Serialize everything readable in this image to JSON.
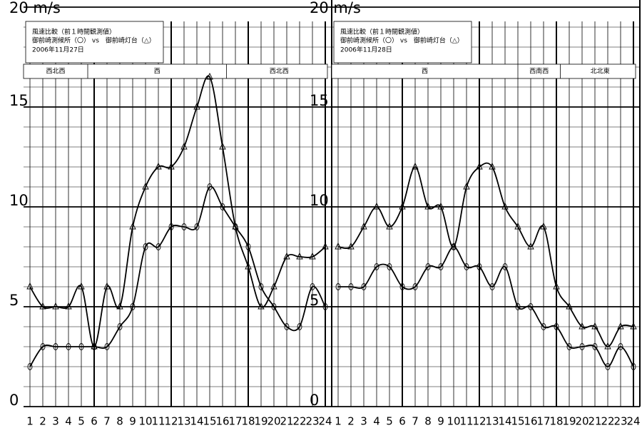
{
  "chart_data": [
    {
      "type": "line",
      "title": "風速比較（前１時間観測値）",
      "subtitle": "御前崎測候所（〇） vs　御前崎灯台（△）",
      "date": "2006年11月27日",
      "directions": [
        {
          "label": "西北西",
          "from": 0.5,
          "to": 5.5
        },
        {
          "label": "西",
          "from": 5.5,
          "to": 16.3
        },
        {
          "label": "西北西",
          "from": 16.3,
          "to": 24.5
        }
      ],
      "x": [
        1,
        2,
        3,
        4,
        5,
        6,
        7,
        8,
        9,
        10,
        11,
        12,
        13,
        14,
        15,
        16,
        17,
        18,
        19,
        20,
        21,
        22,
        23,
        24
      ],
      "xlim": [
        0.5,
        24.5
      ],
      "ylim": [
        0,
        20
      ],
      "yticks": [
        0,
        5,
        10,
        15,
        {
          "value": 20,
          "label": "20 m/s"
        }
      ],
      "series": [
        {
          "marker": "circle",
          "color": "#000",
          "values": [
            2,
            3,
            3,
            3,
            3,
            3,
            3,
            4,
            5,
            8,
            8,
            9,
            9,
            9,
            11,
            10,
            9,
            8,
            6,
            5,
            4,
            4,
            6,
            5
          ]
        },
        {
          "marker": "triangle",
          "color": "#000",
          "values": [
            6,
            5,
            5,
            5,
            6,
            3,
            6,
            5,
            9,
            11,
            12,
            12,
            13,
            15,
            16.5,
            13,
            9,
            7,
            5,
            6,
            7.5,
            7.5,
            7.5,
            8
          ]
        }
      ]
    },
    {
      "type": "line",
      "title": "風速比較（前１時間観測値）",
      "subtitle": "御前崎測候所（〇） vs　御前崎灯台（△）",
      "date": "2006年11月28日",
      "directions": [
        {
          "label": "西",
          "from": 0.5,
          "to": 15
        },
        {
          "label": "西南西",
          "from": 15,
          "to": 18.3
        },
        {
          "label": "北北東",
          "from": 18.3,
          "to": 24.5
        }
      ],
      "x": [
        1,
        2,
        3,
        4,
        5,
        6,
        7,
        8,
        9,
        10,
        11,
        12,
        13,
        14,
        15,
        16,
        17,
        18,
        19,
        20,
        21,
        22,
        23,
        24
      ],
      "xlim": [
        0.5,
        24.5
      ],
      "ylim": [
        0,
        20
      ],
      "yticks": [
        0,
        5,
        10,
        15,
        {
          "value": 20,
          "label": "20 m/s"
        }
      ],
      "series": [
        {
          "marker": "circle",
          "color": "#000",
          "values": [
            6,
            6,
            6,
            7,
            7,
            6,
            6,
            7,
            7,
            8,
            7,
            7,
            6,
            7,
            5,
            5,
            4,
            4,
            3,
            3,
            3,
            2,
            3,
            2
          ]
        },
        {
          "marker": "triangle",
          "color": "#000",
          "values": [
            8,
            8,
            9,
            10,
            9,
            10,
            12,
            10,
            10,
            8,
            11,
            12,
            12,
            10,
            9,
            8,
            9,
            6,
            5,
            4,
            4,
            3,
            4,
            4
          ]
        }
      ]
    }
  ]
}
